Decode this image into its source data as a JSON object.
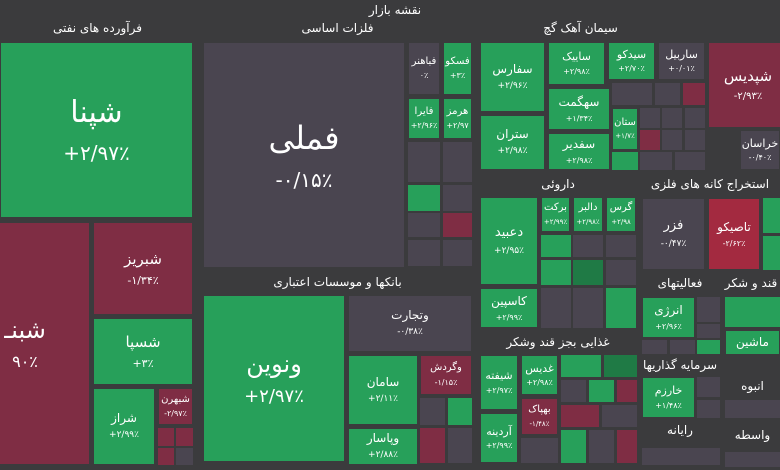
{
  "title": "نقشه بازار",
  "sectors": [
    {
      "name": "فرآورده های نفتی",
      "tiles": [
        {
          "symbol": "شپنا",
          "change": "+۲/۹۷٪"
        },
        {
          "symbol": "شبنـ",
          "change": "۹۰٪"
        },
        {
          "symbol": "شبریز",
          "change": "-۱/۳۴٪"
        },
        {
          "symbol": "شسپا",
          "change": "+۳٪"
        },
        {
          "symbol": "شراز",
          "change": "+۲/۹۹٪"
        },
        {
          "symbol": "شبهرن",
          "change": "-۲/۹۷٪"
        }
      ]
    },
    {
      "name": "فلزات اساسی",
      "tiles": [
        {
          "symbol": "فملی",
          "change": "-۰/۱۵٪"
        },
        {
          "symbol": "فباهنر",
          "change": "۰٪"
        },
        {
          "symbol": "فسکو",
          "change": "+۳٪"
        },
        {
          "symbol": "فایرا",
          "change": "+۲/۹۶٪"
        },
        {
          "symbol": "هرمز",
          "change": "+۲/۹۷"
        }
      ]
    },
    {
      "name": "بانکها و موسسات اعتباری",
      "tiles": [
        {
          "symbol": "ونوین",
          "change": "+۲/۹۷٪"
        },
        {
          "symbol": "وتجارت",
          "change": "-۰/۳۸٪"
        },
        {
          "symbol": "سامان",
          "change": "+۲/۱۱٪"
        },
        {
          "symbol": "وگردش",
          "change": "-۱/۱۵٪"
        },
        {
          "symbol": "وپاسار",
          "change": "+۲/۸۸٪"
        }
      ]
    },
    {
      "name": "سیمان آهک گچ",
      "tiles": [
        {
          "symbol": "سفارس",
          "change": "+۲/۹۶٪"
        },
        {
          "symbol": "ساییک",
          "change": "+۲/۹۸٪"
        },
        {
          "symbol": "سیدکو",
          "change": "+۲/۷۰٪"
        },
        {
          "symbol": "ساربیل",
          "change": "+۰/۰۱٪"
        },
        {
          "symbol": "سهگمت",
          "change": "+۱/۳۴٪"
        },
        {
          "symbol": "ستران",
          "change": "+۲/۹۸٪"
        },
        {
          "symbol": "سفدیر",
          "change": "+۲/۹۸٪"
        },
        {
          "symbol": "ستان",
          "change": "+۱/۷٪"
        }
      ]
    },
    {
      "tiles": [
        {
          "symbol": "شپدیس",
          "change": "-۲/۹۳٪"
        },
        {
          "symbol": "خراسان",
          "change": "-۰/۴۰٪"
        }
      ]
    },
    {
      "name": "داروئی",
      "tiles": [
        {
          "symbol": "دعبید",
          "change": "+۲/۹۵٪"
        },
        {
          "symbol": "برکت",
          "change": "+۲/۹۹٪"
        },
        {
          "symbol": "دالبر",
          "change": "+۲/۹۸٪"
        },
        {
          "symbol": "گرس",
          "change": "+۲/۹۸"
        },
        {
          "symbol": "کاسپین",
          "change": "+۲/۹۹٪"
        }
      ]
    },
    {
      "name": "استخراج کانه های فلزی",
      "tiles": [
        {
          "symbol": "فزر",
          "change": "-۰/۴۷٪"
        },
        {
          "symbol": "تاصیکو",
          "change": "-۲/۶۲٪"
        }
      ]
    },
    {
      "name": "غذایی بجز قند وشکر",
      "tiles": [
        {
          "symbol": "شیفته",
          "change": "+۲/۹۷٪"
        },
        {
          "symbol": "غدیس",
          "change": "+۲/۹۸٪"
        },
        {
          "symbol": "بهپاک",
          "change": "-۱/۴۸٪"
        },
        {
          "symbol": "آردینه",
          "change": "+۲/۹۹٪"
        }
      ]
    },
    {
      "name": "فعالیتهای",
      "tiles": [
        {
          "symbol": "انرژی",
          "change": "+۲/۹۶٪"
        }
      ]
    },
    {
      "name": "قند و شکر",
      "tiles": [
        {
          "symbol": "ماشین"
        }
      ]
    },
    {
      "name": "سرمایه گذاریها",
      "tiles": [
        {
          "symbol": "خارزم",
          "change": "+۱/۴۸٪"
        }
      ]
    },
    {
      "name": "رایانه",
      "tiles": []
    },
    {
      "name": "انبوه",
      "tiles": []
    },
    {
      "name": "واسطه",
      "tiles": []
    }
  ]
}
